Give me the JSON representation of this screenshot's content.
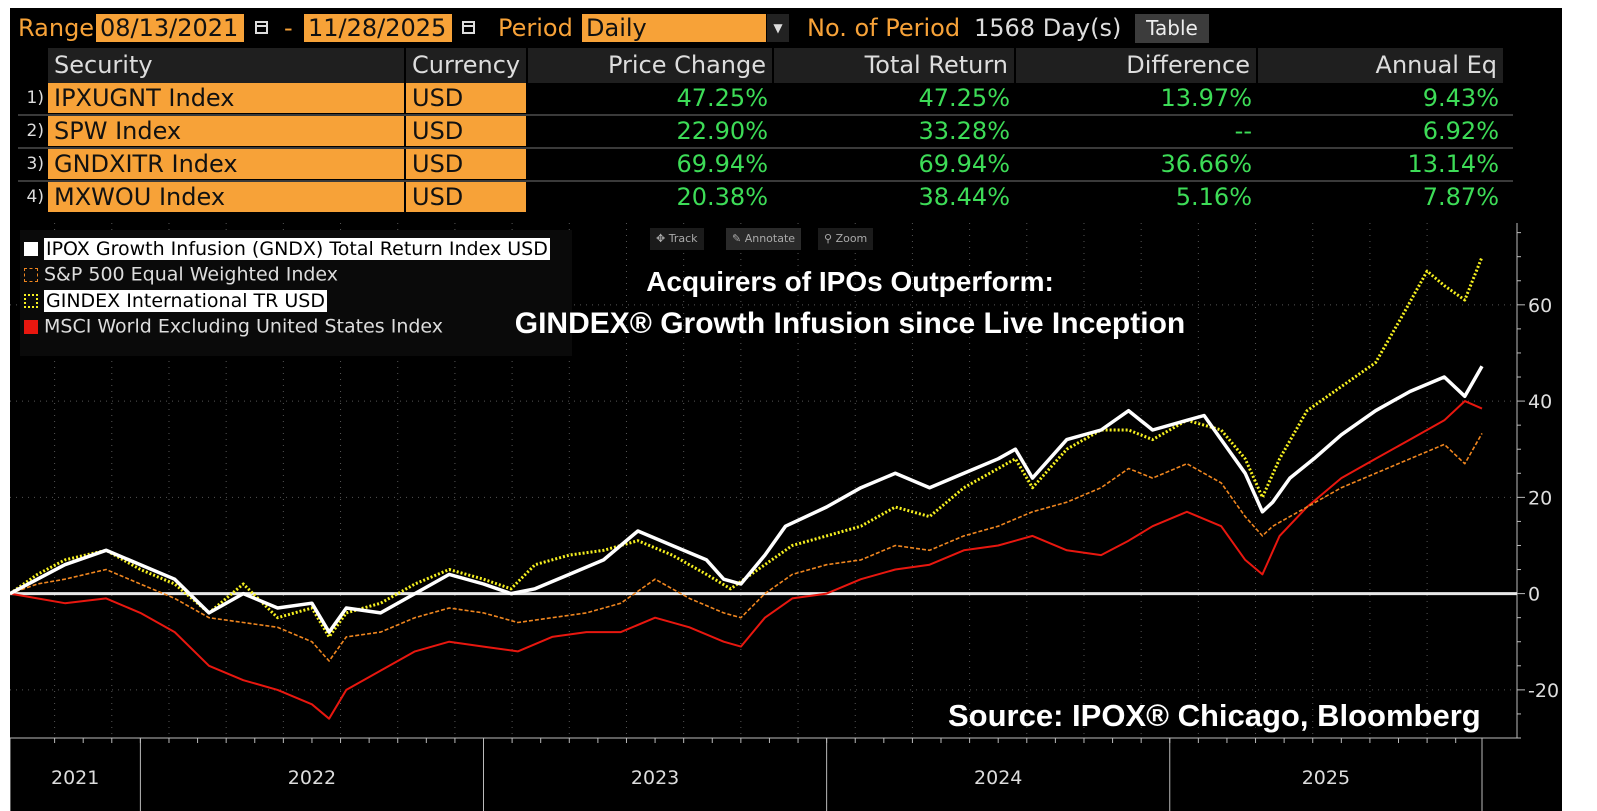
{
  "toolbar": {
    "range_label": "Range",
    "range_start": "08/13/2021",
    "range_dash": "-",
    "range_end": "11/28/2025",
    "period_label": "Period",
    "period_value": "Daily",
    "num_period_label": "No. of Period",
    "num_period_value": "1568 Day(s)",
    "table_button": "Table"
  },
  "table": {
    "headers": [
      "Security",
      "Currency",
      "Price Change",
      "Total Return",
      "Difference",
      "Annual Eq"
    ],
    "rows": [
      {
        "num": "1)",
        "security": "IPXUGNT  Index",
        "currency": "USD",
        "price_change": "47.25%",
        "total_return": "47.25%",
        "difference": "13.97%",
        "annual_eq": "9.43%"
      },
      {
        "num": "2)",
        "security": "SPW Index",
        "currency": "USD",
        "price_change": "22.90%",
        "total_return": "33.28%",
        "difference": "--",
        "annual_eq": "6.92%"
      },
      {
        "num": "3)",
        "security": "GNDXITR Index",
        "currency": "USD",
        "price_change": "69.94%",
        "total_return": "69.94%",
        "difference": "36.66%",
        "annual_eq": "13.14%"
      },
      {
        "num": "4)",
        "security": "MXWOU Index",
        "currency": "USD",
        "price_change": "20.38%",
        "total_return": "38.44%",
        "difference": "5.16%",
        "annual_eq": "7.87%"
      }
    ]
  },
  "chart_tools": [
    "Track",
    "Annotate",
    "Zoom"
  ],
  "chart_data": {
    "type": "line",
    "title": "Acquirers of IPOs Outperform:",
    "subtitle": "GINDEX® Growth Infusion since Live Inception",
    "source": "Source: IPOX® Chicago, Bloomberg",
    "x_labels": [
      "2021",
      "2022",
      "2023",
      "2024",
      "2025"
    ],
    "x_range": [
      2021.62,
      2025.91
    ],
    "y_ticks": [
      "60",
      "40",
      "20",
      "0",
      "-20"
    ],
    "y_tick_values": [
      60,
      40,
      20,
      0,
      -20
    ],
    "ylim": [
      -30,
      77
    ],
    "zero_line": 0,
    "series": [
      {
        "name": "IPOX Growth Infusion (GNDX) Total Return Index USD",
        "color": "#ffffff",
        "style": "solid",
        "points": [
          [
            2021.62,
            0
          ],
          [
            2021.7,
            3
          ],
          [
            2021.78,
            6
          ],
          [
            2021.9,
            9
          ],
          [
            2022.0,
            6
          ],
          [
            2022.1,
            3
          ],
          [
            2022.2,
            -4
          ],
          [
            2022.3,
            0
          ],
          [
            2022.4,
            -3
          ],
          [
            2022.5,
            -2
          ],
          [
            2022.55,
            -8
          ],
          [
            2022.6,
            -3
          ],
          [
            2022.7,
            -4
          ],
          [
            2022.8,
            0
          ],
          [
            2022.9,
            4
          ],
          [
            2023.0,
            2
          ],
          [
            2023.08,
            0
          ],
          [
            2023.15,
            1
          ],
          [
            2023.25,
            4
          ],
          [
            2023.35,
            7
          ],
          [
            2023.45,
            13
          ],
          [
            2023.55,
            10
          ],
          [
            2023.65,
            7
          ],
          [
            2023.7,
            3
          ],
          [
            2023.75,
            2
          ],
          [
            2023.82,
            8
          ],
          [
            2023.88,
            14
          ],
          [
            2024.0,
            18
          ],
          [
            2024.1,
            22
          ],
          [
            2024.2,
            25
          ],
          [
            2024.3,
            22
          ],
          [
            2024.4,
            25
          ],
          [
            2024.5,
            28
          ],
          [
            2024.55,
            30
          ],
          [
            2024.6,
            24
          ],
          [
            2024.7,
            32
          ],
          [
            2024.8,
            34
          ],
          [
            2024.88,
            38
          ],
          [
            2024.95,
            34
          ],
          [
            2025.05,
            36
          ],
          [
            2025.1,
            37
          ],
          [
            2025.15,
            32
          ],
          [
            2025.22,
            25
          ],
          [
            2025.27,
            17
          ],
          [
            2025.3,
            19
          ],
          [
            2025.35,
            24
          ],
          [
            2025.42,
            28
          ],
          [
            2025.5,
            33
          ],
          [
            2025.6,
            38
          ],
          [
            2025.7,
            42
          ],
          [
            2025.8,
            45
          ],
          [
            2025.86,
            41
          ],
          [
            2025.91,
            47.25
          ]
        ]
      },
      {
        "name": "S&P 500 Equal Weighted Index",
        "color": "#f0861f",
        "style": "dashed",
        "points": [
          [
            2021.62,
            0
          ],
          [
            2021.7,
            2
          ],
          [
            2021.78,
            3
          ],
          [
            2021.9,
            5
          ],
          [
            2022.0,
            2
          ],
          [
            2022.1,
            -1
          ],
          [
            2022.2,
            -5
          ],
          [
            2022.3,
            -6
          ],
          [
            2022.4,
            -7
          ],
          [
            2022.5,
            -10
          ],
          [
            2022.55,
            -14
          ],
          [
            2022.6,
            -9
          ],
          [
            2022.7,
            -8
          ],
          [
            2022.8,
            -5
          ],
          [
            2022.9,
            -3
          ],
          [
            2023.0,
            -4
          ],
          [
            2023.1,
            -6
          ],
          [
            2023.2,
            -5
          ],
          [
            2023.3,
            -4
          ],
          [
            2023.4,
            -2
          ],
          [
            2023.5,
            3
          ],
          [
            2023.6,
            -1
          ],
          [
            2023.7,
            -4
          ],
          [
            2023.75,
            -5
          ],
          [
            2023.82,
            0
          ],
          [
            2023.9,
            4
          ],
          [
            2024.0,
            6
          ],
          [
            2024.1,
            7
          ],
          [
            2024.2,
            10
          ],
          [
            2024.3,
            9
          ],
          [
            2024.4,
            12
          ],
          [
            2024.5,
            14
          ],
          [
            2024.6,
            17
          ],
          [
            2024.7,
            19
          ],
          [
            2024.8,
            22
          ],
          [
            2024.88,
            26
          ],
          [
            2024.95,
            24
          ],
          [
            2025.05,
            27
          ],
          [
            2025.15,
            23
          ],
          [
            2025.22,
            16
          ],
          [
            2025.27,
            12
          ],
          [
            2025.3,
            14
          ],
          [
            2025.4,
            18
          ],
          [
            2025.5,
            22
          ],
          [
            2025.6,
            25
          ],
          [
            2025.7,
            28
          ],
          [
            2025.8,
            31
          ],
          [
            2025.86,
            27
          ],
          [
            2025.91,
            33.28
          ]
        ]
      },
      {
        "name": "GINDEX International TR USD",
        "color": "#f5ef1f",
        "style": "dotted",
        "points": [
          [
            2021.62,
            0
          ],
          [
            2021.7,
            4
          ],
          [
            2021.78,
            7
          ],
          [
            2021.9,
            9
          ],
          [
            2022.0,
            5
          ],
          [
            2022.1,
            2
          ],
          [
            2022.2,
            -4
          ],
          [
            2022.3,
            2
          ],
          [
            2022.4,
            -5
          ],
          [
            2022.5,
            -3
          ],
          [
            2022.55,
            -9
          ],
          [
            2022.6,
            -4
          ],
          [
            2022.7,
            -2
          ],
          [
            2022.8,
            2
          ],
          [
            2022.9,
            5
          ],
          [
            2023.0,
            3
          ],
          [
            2023.08,
            1
          ],
          [
            2023.15,
            6
          ],
          [
            2023.25,
            8
          ],
          [
            2023.35,
            9
          ],
          [
            2023.45,
            11
          ],
          [
            2023.55,
            8
          ],
          [
            2023.65,
            4
          ],
          [
            2023.72,
            1
          ],
          [
            2023.8,
            5
          ],
          [
            2023.9,
            10
          ],
          [
            2024.0,
            12
          ],
          [
            2024.1,
            14
          ],
          [
            2024.2,
            18
          ],
          [
            2024.3,
            16
          ],
          [
            2024.4,
            22
          ],
          [
            2024.5,
            26
          ],
          [
            2024.55,
            28
          ],
          [
            2024.6,
            22
          ],
          [
            2024.7,
            30
          ],
          [
            2024.8,
            34
          ],
          [
            2024.88,
            34
          ],
          [
            2024.95,
            32
          ],
          [
            2025.05,
            36
          ],
          [
            2025.15,
            34
          ],
          [
            2025.22,
            28
          ],
          [
            2025.27,
            20
          ],
          [
            2025.32,
            28
          ],
          [
            2025.4,
            38
          ],
          [
            2025.5,
            43
          ],
          [
            2025.6,
            48
          ],
          [
            2025.68,
            58
          ],
          [
            2025.75,
            67
          ],
          [
            2025.8,
            64
          ],
          [
            2025.86,
            61
          ],
          [
            2025.91,
            69.94
          ]
        ]
      },
      {
        "name": "MSCI World Excluding United States Index",
        "color": "#e8170f",
        "style": "solid",
        "points": [
          [
            2021.62,
            0
          ],
          [
            2021.7,
            -1
          ],
          [
            2021.78,
            -2
          ],
          [
            2021.9,
            -1
          ],
          [
            2022.0,
            -4
          ],
          [
            2022.1,
            -8
          ],
          [
            2022.2,
            -15
          ],
          [
            2022.3,
            -18
          ],
          [
            2022.4,
            -20
          ],
          [
            2022.5,
            -23
          ],
          [
            2022.55,
            -26
          ],
          [
            2022.6,
            -20
          ],
          [
            2022.7,
            -16
          ],
          [
            2022.8,
            -12
          ],
          [
            2022.9,
            -10
          ],
          [
            2023.0,
            -11
          ],
          [
            2023.1,
            -12
          ],
          [
            2023.2,
            -9
          ],
          [
            2023.3,
            -8
          ],
          [
            2023.4,
            -8
          ],
          [
            2023.5,
            -5
          ],
          [
            2023.6,
            -7
          ],
          [
            2023.7,
            -10
          ],
          [
            2023.75,
            -11
          ],
          [
            2023.82,
            -5
          ],
          [
            2023.9,
            -1
          ],
          [
            2024.0,
            0
          ],
          [
            2024.1,
            3
          ],
          [
            2024.2,
            5
          ],
          [
            2024.3,
            6
          ],
          [
            2024.4,
            9
          ],
          [
            2024.5,
            10
          ],
          [
            2024.6,
            12
          ],
          [
            2024.7,
            9
          ],
          [
            2024.8,
            8
          ],
          [
            2024.88,
            11
          ],
          [
            2024.95,
            14
          ],
          [
            2025.05,
            17
          ],
          [
            2025.15,
            14
          ],
          [
            2025.22,
            7
          ],
          [
            2025.27,
            4
          ],
          [
            2025.32,
            12
          ],
          [
            2025.4,
            18
          ],
          [
            2025.5,
            24
          ],
          [
            2025.6,
            28
          ],
          [
            2025.7,
            32
          ],
          [
            2025.8,
            36
          ],
          [
            2025.86,
            40
          ],
          [
            2025.91,
            38.44
          ]
        ]
      }
    ]
  }
}
